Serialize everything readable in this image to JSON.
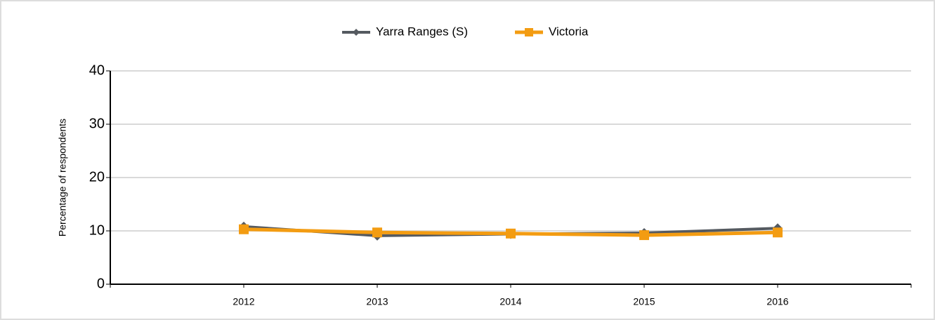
{
  "chart_data": {
    "type": "line",
    "categories": [
      "2012",
      "2013",
      "2014",
      "2015",
      "2016"
    ],
    "series": [
      {
        "name": "Yarra Ranges (S)",
        "color": "#555a60",
        "values": [
          10.8,
          9.1,
          9.4,
          9.6,
          10.5
        ]
      },
      {
        "name": "Victoria",
        "color": "#f39c12",
        "values": [
          10.3,
          9.7,
          9.5,
          9.2,
          9.7
        ]
      }
    ],
    "y_label": "Percentage of respondents",
    "ylim": [
      0,
      40
    ],
    "yticks": [
      0,
      10,
      20,
      30,
      40
    ],
    "grid": true,
    "legend": "top"
  }
}
